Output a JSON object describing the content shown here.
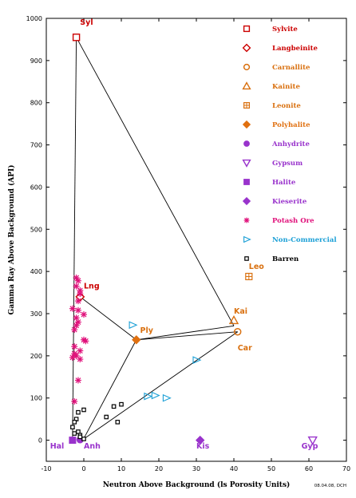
{
  "chart_data": {
    "type": "scatter",
    "xlabel": "Neutron Above Background (ls Porosity Units)",
    "ylabel": "Gamma Ray Above Background (API)",
    "xlim": [
      -10,
      70
    ],
    "ylim": [
      -50,
      1000
    ],
    "x_ticks": [
      -10,
      0,
      10,
      20,
      30,
      40,
      50,
      60,
      70
    ],
    "y_ticks": [
      0,
      100,
      200,
      300,
      400,
      500,
      600,
      700,
      800,
      900,
      1000
    ],
    "credit": "08.04.08, DCH",
    "legend_placement": "top-right",
    "series": [
      {
        "name": "Sylvite",
        "marker": "square-open",
        "color": "#cc0000",
        "points": [
          [
            -2,
            955
          ]
        ]
      },
      {
        "name": "Langbeinite",
        "marker": "diamond-open",
        "color": "#cc0000",
        "points": [
          [
            -1,
            340
          ]
        ]
      },
      {
        "name": "Carnallite",
        "marker": "circle-open",
        "color": "#d9700f",
        "points": [
          [
            41,
            257
          ]
        ]
      },
      {
        "name": "Kainite",
        "marker": "triangle-open",
        "color": "#d9700f",
        "points": [
          [
            40,
            284
          ]
        ]
      },
      {
        "name": "Leonite",
        "marker": "square-hatched",
        "color": "#d9700f",
        "points": [
          [
            44,
            388
          ]
        ]
      },
      {
        "name": "Polyhalite",
        "marker": "diamond-filled",
        "color": "#e07010",
        "points": [
          [
            14,
            238
          ]
        ]
      },
      {
        "name": "Anhydrite",
        "marker": "circle-filled",
        "color": "#9933cc",
        "points": [
          [
            -1,
            1
          ]
        ]
      },
      {
        "name": "Gypsum",
        "marker": "triangle-down-open",
        "color": "#9933cc",
        "points": [
          [
            61,
            0
          ]
        ]
      },
      {
        "name": "Halite",
        "marker": "square-filled",
        "color": "#9933cc",
        "points": [
          [
            -3,
            0
          ]
        ]
      },
      {
        "name": "Kieserite",
        "marker": "diamond-filled",
        "color": "#9933cc",
        "points": [
          [
            31,
            0
          ]
        ]
      },
      {
        "name": "Potash Ore",
        "marker": "asterisk",
        "color": "#e0107a",
        "points": [
          [
            -2,
            385
          ],
          [
            -1.5,
            378
          ],
          [
            -2,
            365
          ],
          [
            -1,
            355
          ],
          [
            -1,
            347
          ],
          [
            -1.5,
            330
          ],
          [
            -3,
            312
          ],
          [
            -1.5,
            308
          ],
          [
            0,
            298
          ],
          [
            -2,
            290
          ],
          [
            -1.5,
            280
          ],
          [
            -2,
            272
          ],
          [
            -2.5,
            262
          ],
          [
            0,
            238
          ],
          [
            0.5,
            235
          ],
          [
            -2.5,
            222
          ],
          [
            -1,
            212
          ],
          [
            -2.5,
            205
          ],
          [
            -2,
            200
          ],
          [
            -3,
            196
          ],
          [
            -1,
            192
          ],
          [
            -1.5,
            142
          ],
          [
            -2.5,
            92
          ]
        ]
      },
      {
        "name": "Non-Commercial",
        "marker": "triangle-right-open",
        "color": "#1a9fd6",
        "points": [
          [
            13,
            273
          ],
          [
            30,
            190
          ],
          [
            17,
            104
          ],
          [
            19,
            106
          ],
          [
            22,
            100
          ]
        ]
      },
      {
        "name": "Barren",
        "marker": "square-small",
        "color": "#000000",
        "points": [
          [
            -1.5,
            66
          ],
          [
            -2,
            50
          ],
          [
            -2.5,
            43
          ],
          [
            -3,
            31
          ],
          [
            -1.5,
            20
          ],
          [
            -2.5,
            16
          ],
          [
            -1,
            12
          ],
          [
            0,
            3
          ],
          [
            -1,
            8
          ],
          [
            0,
            72
          ],
          [
            8,
            80
          ],
          [
            10,
            85
          ],
          [
            6,
            55
          ],
          [
            9,
            43
          ]
        ]
      }
    ],
    "point_labels": [
      {
        "text": "Syl",
        "x": -1,
        "y": 985,
        "color": "#cc0000"
      },
      {
        "text": "Lng",
        "x": 0,
        "y": 360,
        "color": "#cc0000"
      },
      {
        "text": "Kai",
        "x": 40,
        "y": 300,
        "color": "#d9700f"
      },
      {
        "text": "Leo",
        "x": 44,
        "y": 406,
        "color": "#d9700f"
      },
      {
        "text": "Ply",
        "x": 15,
        "y": 255,
        "color": "#d9700f"
      },
      {
        "text": "Car",
        "x": 41,
        "y": 213,
        "color": "#d9700f"
      },
      {
        "text": "Hal",
        "x": -9,
        "y": -20,
        "color": "#9933cc"
      },
      {
        "text": "Anh",
        "x": 0,
        "y": -20,
        "color": "#9933cc"
      },
      {
        "text": "Kis",
        "x": 30,
        "y": -20,
        "color": "#9933cc"
      },
      {
        "text": "Gyp",
        "x": 58,
        "y": -20,
        "color": "#9933cc"
      }
    ],
    "tie_lines": [
      [
        [
          -2,
          955
        ],
        [
          40,
          271
        ]
      ],
      [
        [
          -1,
          340
        ],
        [
          14,
          238
        ]
      ],
      [
        [
          14,
          238
        ],
        [
          40,
          271
        ]
      ],
      [
        [
          14,
          238
        ],
        [
          41,
          257
        ]
      ],
      [
        [
          14,
          238
        ],
        [
          0,
          4
        ]
      ],
      [
        [
          41,
          257
        ],
        [
          0,
          3
        ]
      ],
      [
        [
          -2,
          955
        ],
        [
          -3,
          4
        ]
      ]
    ]
  }
}
